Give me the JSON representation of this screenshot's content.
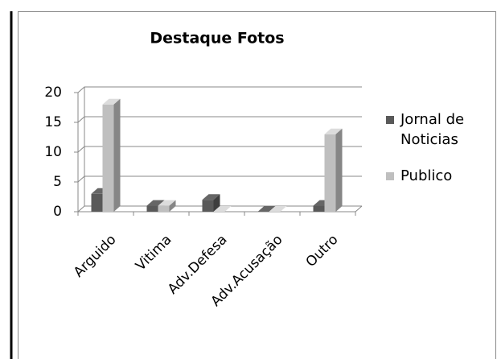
{
  "chart_data": {
    "type": "bar3d",
    "title": "Destaque Fotos",
    "categories": [
      "Arguido",
      "Vitima",
      "Adv.Defesa",
      "Adv.Acusação",
      "Outro"
    ],
    "series": [
      {
        "name": "Jornal de Noticias",
        "color": "#595959",
        "values": [
          3,
          1,
          2,
          0,
          1
        ]
      },
      {
        "name": "Publico",
        "color": "#bfbfbf",
        "values": [
          18,
          1,
          0,
          0,
          13
        ]
      }
    ],
    "ylim": [
      0,
      20
    ],
    "yticks": [
      0,
      5,
      10,
      15,
      20
    ],
    "grid": true,
    "legend": "right"
  }
}
